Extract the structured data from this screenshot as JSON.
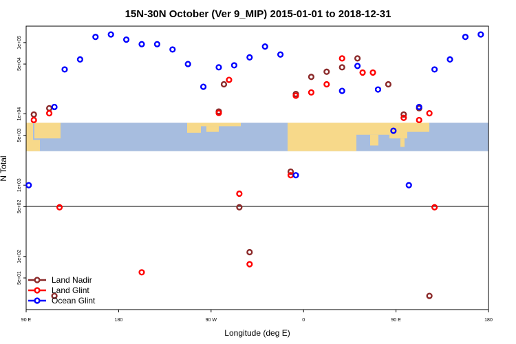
{
  "chart_data": {
    "type": "scatter",
    "title": "15N-30N October (Ver 9_MIP)   2015-01-01 to 2018-12-31",
    "xlabel": "Longitude (deg E)",
    "ylabel": "N Total",
    "x_ticks": [
      {
        "value": 90,
        "label": "90 E"
      },
      {
        "value": 180,
        "label": "180"
      },
      {
        "value": 270,
        "label": "90 W"
      },
      {
        "value": 360,
        "label": "0"
      },
      {
        "value": 450,
        "label": "90 E"
      },
      {
        "value": 540,
        "label": "180"
      }
    ],
    "y_ticks": [
      {
        "value": 50,
        "label": "5e+01"
      },
      {
        "value": 100,
        "label": "1e+02"
      },
      {
        "value": 500,
        "label": "5e+02"
      },
      {
        "value": 1000,
        "label": "1e+03"
      },
      {
        "value": 5000,
        "label": "5e+03"
      },
      {
        "value": 10000,
        "label": "1e+04"
      },
      {
        "value": 50000,
        "label": "5e+04"
      },
      {
        "value": 100000,
        "label": "1e+05"
      }
    ],
    "xlim": [
      90,
      540
    ],
    "ylim": [
      18,
      170000
    ],
    "y_scale": "log",
    "legend": "bottom-left",
    "map_band": {
      "ymin": 3000,
      "ymax": 7500,
      "ocean_color": "#a7bddf",
      "land_color": "#f7d98a"
    },
    "series": [
      {
        "name": "Land Nadir",
        "color": "#8b2a2a",
        "points": [
          [
            97.5,
            9800
          ],
          [
            112.5,
            12000
          ],
          [
            117.5,
            28
          ],
          [
            277.5,
            10800
          ],
          [
            282.5,
            26000
          ],
          [
            297.5,
            490
          ],
          [
            307.5,
            115
          ],
          [
            347.5,
            1550
          ],
          [
            352.5,
            19000
          ],
          [
            367.5,
            33000
          ],
          [
            382.5,
            39000
          ],
          [
            397.5,
            45000
          ],
          [
            412.5,
            60000
          ],
          [
            442.5,
            26000
          ],
          [
            457.5,
            9800
          ],
          [
            472.5,
            12000
          ],
          [
            482.5,
            28
          ]
        ]
      },
      {
        "name": "Land Glint",
        "color": "#ff0000",
        "points": [
          [
            97.5,
            8200
          ],
          [
            112.5,
            10200
          ],
          [
            122.5,
            490
          ],
          [
            202.5,
            60
          ],
          [
            277.5,
            10300
          ],
          [
            287.5,
            30000
          ],
          [
            297.5,
            760
          ],
          [
            307.5,
            78
          ],
          [
            347.5,
            1380
          ],
          [
            352.5,
            18000
          ],
          [
            367.5,
            20000
          ],
          [
            382.5,
            26000
          ],
          [
            397.5,
            60000
          ],
          [
            417.5,
            38000
          ],
          [
            427.5,
            38000
          ],
          [
            457.5,
            8800
          ],
          [
            472.5,
            8200
          ],
          [
            482.5,
            10200
          ],
          [
            487.5,
            490
          ]
        ]
      },
      {
        "name": "Ocean Glint",
        "color": "#0000ff",
        "points": [
          [
            92.5,
            1000
          ],
          [
            117.5,
            12500
          ],
          [
            127.5,
            42000
          ],
          [
            142.5,
            58000
          ],
          [
            157.5,
            120000
          ],
          [
            172.5,
            130000
          ],
          [
            187.5,
            110000
          ],
          [
            202.5,
            95000
          ],
          [
            217.5,
            95000
          ],
          [
            232.5,
            80000
          ],
          [
            247.5,
            50000
          ],
          [
            262.5,
            24000
          ],
          [
            277.5,
            45000
          ],
          [
            292.5,
            48000
          ],
          [
            307.5,
            62000
          ],
          [
            322.5,
            88000
          ],
          [
            337.5,
            68000
          ],
          [
            352.5,
            1380
          ],
          [
            397.5,
            21000
          ],
          [
            412.5,
            47000
          ],
          [
            432.5,
            22000
          ],
          [
            447.5,
            5800
          ],
          [
            462.5,
            1000
          ],
          [
            472.5,
            12500
          ],
          [
            487.5,
            42000
          ],
          [
            502.5,
            58000
          ],
          [
            517.5,
            120000
          ],
          [
            532.5,
            130000
          ]
        ]
      }
    ]
  }
}
